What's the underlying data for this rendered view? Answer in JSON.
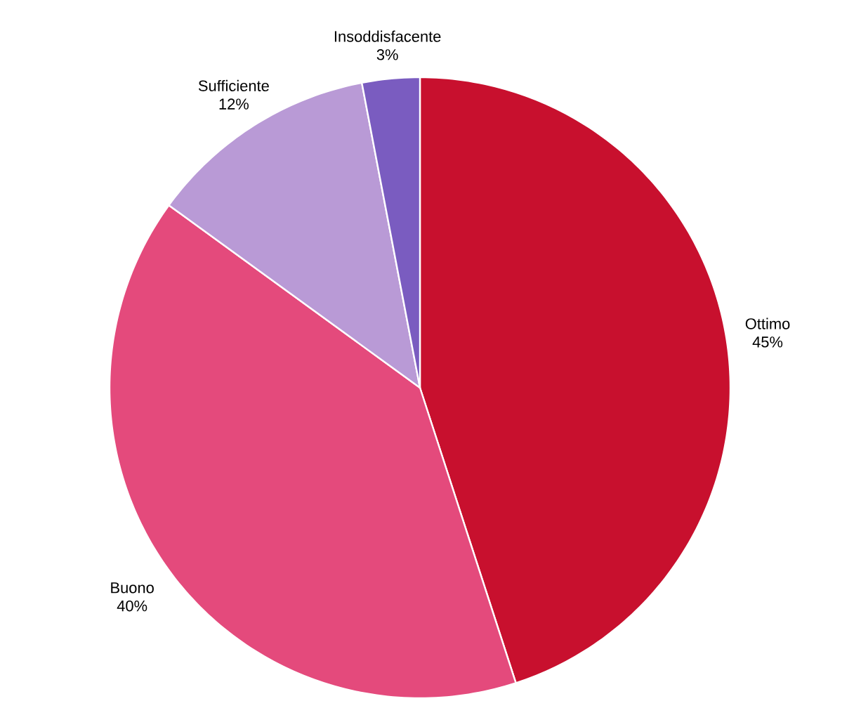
{
  "chart_data": {
    "type": "pie",
    "categories": [
      "Ottimo",
      "Buono",
      "Sufficiente",
      "Insoddisfacente"
    ],
    "values": [
      45,
      40,
      12,
      3
    ],
    "value_labels": [
      "45%",
      "40%",
      "12%",
      "3%"
    ],
    "colors": [
      "#c8102e",
      "#e44a7c",
      "#b99ad6",
      "#7a5cc0"
    ]
  }
}
